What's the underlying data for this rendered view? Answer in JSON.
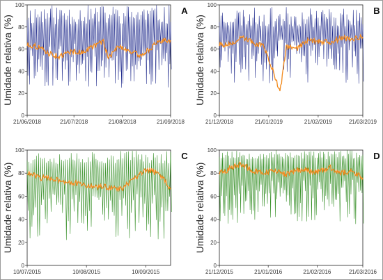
{
  "chart_data": [
    {
      "panel": "A",
      "type": "line",
      "ylabel": "Umidade relativa (%)",
      "ylim": [
        0,
        100
      ],
      "yticks": [
        0,
        20,
        40,
        60,
        80,
        100
      ],
      "xlim": [
        "2018-06-21",
        "2018-09-21"
      ],
      "xticks": [
        {
          "date": "2018-06-21",
          "label": "21/06/2018"
        },
        {
          "date": "2018-07-21",
          "label": "21/07/2018"
        },
        {
          "date": "2018-08-21",
          "label": "21/08/2018"
        },
        {
          "date": "2018-09-21",
          "label": "21/09/2018"
        }
      ],
      "series_colors": [
        "#1f2a8c",
        "#f28a1d"
      ],
      "hourly": {
        "min_high": 82,
        "max_high": 100,
        "min_low": 25,
        "max_low": 65,
        "period_days": 1,
        "seed": 11
      },
      "moving_average": {
        "x": [
          "2018-06-21",
          "2018-06-28",
          "2018-07-05",
          "2018-07-12",
          "2018-07-19",
          "2018-07-26",
          "2018-08-02",
          "2018-08-09",
          "2018-08-12",
          "2018-08-19",
          "2018-08-26",
          "2018-09-02",
          "2018-09-09",
          "2018-09-16",
          "2018-09-21"
        ],
        "y": [
          64,
          62,
          56,
          53,
          58,
          57,
          62,
          67,
          52,
          63,
          58,
          54,
          62,
          68,
          68
        ]
      }
    },
    {
      "panel": "B",
      "type": "line",
      "ylabel": "Umidade relativa (%)",
      "ylim": [
        0,
        100
      ],
      "yticks": [
        0,
        20,
        40,
        60,
        80,
        100
      ],
      "xlim": [
        "2018-12-21",
        "2019-03-21"
      ],
      "xticks": [
        {
          "date": "2018-12-21",
          "label": "21/12/2018"
        },
        {
          "date": "2019-01-21",
          "label": "21/01/2019"
        },
        {
          "date": "2019-02-21",
          "label": "21/02/2019"
        },
        {
          "date": "2019-03-21",
          "label": "21/03/2019"
        }
      ],
      "series_colors": [
        "#1f2a8c",
        "#f28a1d"
      ],
      "hourly": {
        "min_high": 80,
        "max_high": 98,
        "min_low": 28,
        "max_low": 70,
        "period_days": 1,
        "seed": 23
      },
      "moving_average": {
        "x": [
          "2018-12-21",
          "2018-12-28",
          "2019-01-04",
          "2019-01-11",
          "2019-01-18",
          "2019-01-24",
          "2019-01-28",
          "2019-02-01",
          "2019-02-08",
          "2019-02-15",
          "2019-02-22",
          "2019-03-01",
          "2019-03-08",
          "2019-03-15",
          "2019-03-21"
        ],
        "y": [
          64,
          64,
          70,
          66,
          62,
          40,
          20,
          62,
          61,
          68,
          67,
          66,
          70,
          69,
          71
        ]
      }
    },
    {
      "panel": "C",
      "type": "line",
      "ylabel": "Umidade relativa (%)",
      "ylim": [
        0,
        100
      ],
      "yticks": [
        0,
        20,
        40,
        60,
        80,
        100
      ],
      "xlim": [
        "2015-07-10",
        "2015-09-23"
      ],
      "xticks": [
        {
          "date": "2015-07-10",
          "label": "10/07/2015"
        },
        {
          "date": "2015-08-10",
          "label": "10/08/2015"
        },
        {
          "date": "2015-09-10",
          "label": "10/09/2015"
        }
      ],
      "series_colors": [
        "#2e8b1e",
        "#f28a1d"
      ],
      "hourly": {
        "min_high": 88,
        "max_high": 100,
        "min_low": 22,
        "max_low": 62,
        "period_days": 1,
        "seed": 37
      },
      "moving_average": {
        "x": [
          "2015-07-10",
          "2015-07-17",
          "2015-07-24",
          "2015-07-31",
          "2015-08-07",
          "2015-08-14",
          "2015-08-21",
          "2015-08-28",
          "2015-09-04",
          "2015-09-11",
          "2015-09-16",
          "2015-09-20",
          "2015-09-23"
        ],
        "y": [
          80,
          76,
          75,
          73,
          70,
          68,
          68,
          66,
          75,
          83,
          80,
          74,
          66
        ]
      }
    },
    {
      "panel": "D",
      "type": "line",
      "ylabel": "Umidade relativa (%)",
      "ylim": [
        0,
        100
      ],
      "yticks": [
        0,
        20,
        40,
        60,
        80,
        100
      ],
      "xlim": [
        "2015-12-21",
        "2016-03-21"
      ],
      "xticks": [
        {
          "date": "2015-12-21",
          "label": "21/12/2015"
        },
        {
          "date": "2016-01-21",
          "label": "21/01/2016"
        },
        {
          "date": "2016-02-21",
          "label": "21/02/2016"
        },
        {
          "date": "2016-03-21",
          "label": "21/03/2016"
        }
      ],
      "series_colors": [
        "#2e8b1e",
        "#f28a1d"
      ],
      "hourly": {
        "min_high": 92,
        "max_high": 100,
        "min_low": 35,
        "max_low": 75,
        "period_days": 1,
        "seed": 53
      },
      "moving_average": {
        "x": [
          "2015-12-21",
          "2015-12-28",
          "2016-01-04",
          "2016-01-11",
          "2016-01-18",
          "2016-01-25",
          "2016-02-01",
          "2016-02-08",
          "2016-02-15",
          "2016-02-22",
          "2016-02-29",
          "2016-03-07",
          "2016-03-14",
          "2016-03-21"
        ],
        "y": [
          80,
          84,
          88,
          82,
          80,
          82,
          79,
          83,
          82,
          81,
          85,
          80,
          82,
          76
        ]
      }
    }
  ]
}
